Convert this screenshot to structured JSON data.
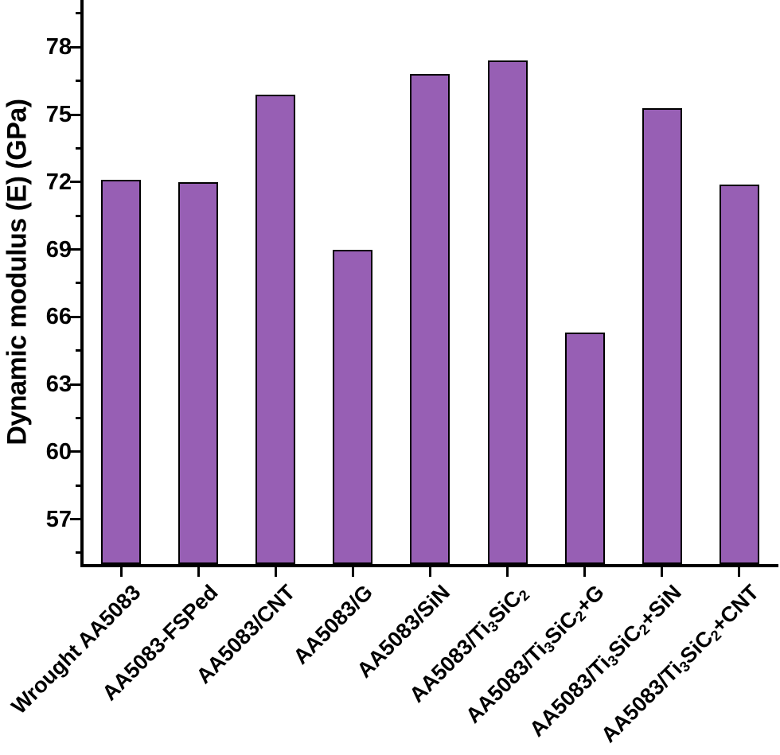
{
  "chart_data": {
    "type": "bar",
    "title": "",
    "xlabel": "",
    "ylabel": "Dynamic modulus (E) (GPa)",
    "categories": [
      "Wrought AA5083",
      "AA5083-FSPed",
      "AA5083/CNT",
      "AA5083/G",
      "AA5083/SiN",
      "AA5083/Ti3SiC2",
      "AA5083/Ti3SiC2+G",
      "AA5083/Ti3SiC2+SiN",
      "AA5083/Ti3SiC2+CNT"
    ],
    "categories_rich": [
      [
        {
          "t": "Wrought AA5083"
        }
      ],
      [
        {
          "t": "AA5083-FSPed"
        }
      ],
      [
        {
          "t": "AA5083/CNT"
        }
      ],
      [
        {
          "t": "AA5083/G"
        }
      ],
      [
        {
          "t": "AA5083/SiN"
        }
      ],
      [
        {
          "t": "AA5083/Ti"
        },
        {
          "t": "3",
          "sub": true
        },
        {
          "t": "SiC"
        },
        {
          "t": "2",
          "sub": true
        }
      ],
      [
        {
          "t": "AA5083/Ti"
        },
        {
          "t": "3",
          "sub": true
        },
        {
          "t": "SiC"
        },
        {
          "t": "2",
          "sub": true
        },
        {
          "t": "+G"
        }
      ],
      [
        {
          "t": "AA5083/Ti"
        },
        {
          "t": "3",
          "sub": true
        },
        {
          "t": "SiC"
        },
        {
          "t": "2",
          "sub": true
        },
        {
          "t": "+SiN"
        }
      ],
      [
        {
          "t": "AA5083/Ti"
        },
        {
          "t": "3",
          "sub": true
        },
        {
          "t": "SiC"
        },
        {
          "t": "2",
          "sub": true
        },
        {
          "t": "+CNT"
        }
      ]
    ],
    "values": [
      72.1,
      72.0,
      75.9,
      69.0,
      76.8,
      77.4,
      65.3,
      75.3,
      71.9
    ],
    "ylim": [
      55,
      80.1
    ],
    "yticks": [
      57,
      60,
      63,
      66,
      69,
      72,
      75,
      78
    ],
    "yticks_minor": [
      55.5,
      58.5,
      61.5,
      64.5,
      67.5,
      70.5,
      73.5,
      76.5,
      79.5
    ],
    "grid": false,
    "legend": null,
    "bar_color": "#975FB4",
    "bar_edge_color": "#000000",
    "axis_color": "#000000",
    "tick_label_color": "#000000"
  }
}
